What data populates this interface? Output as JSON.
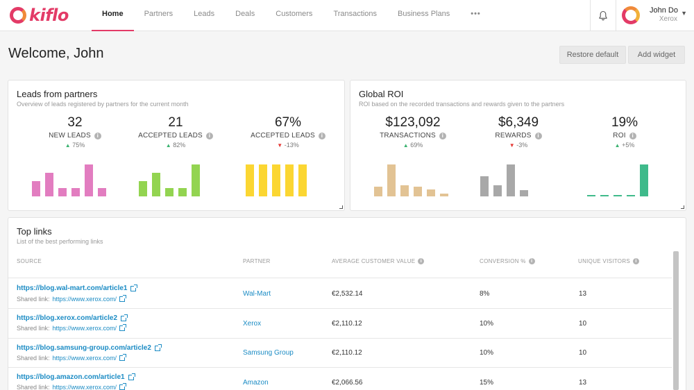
{
  "app": {
    "logo_text": "kiflo"
  },
  "nav": {
    "items": [
      {
        "label": "Home",
        "active": true
      },
      {
        "label": "Partners"
      },
      {
        "label": "Leads"
      },
      {
        "label": "Deals"
      },
      {
        "label": "Customers"
      },
      {
        "label": "Transactions"
      },
      {
        "label": "Business Plans"
      }
    ],
    "more": "•••"
  },
  "user": {
    "name": "John Do",
    "company": "Xerox"
  },
  "header": {
    "welcome": "Welcome, John",
    "restore_label": "Restore default",
    "add_widget_label": "Add widget"
  },
  "leads_card": {
    "title": "Leads from partners",
    "subtitle": "Overview of leads registered by partners for the current month",
    "metrics": [
      {
        "value": "32",
        "label": "NEW LEADS",
        "change": "75%",
        "direction": "up",
        "color": "#e27dc0",
        "bars": [
          0.46,
          0.7,
          0.26,
          0.26,
          0.96,
          0.26
        ]
      },
      {
        "value": "21",
        "label": "ACCEPTED LEADS",
        "change": "82%",
        "direction": "up",
        "color": "#93d451",
        "bars": [
          0.46,
          0.7,
          0.26,
          0.26,
          0.96
        ]
      },
      {
        "value": "67%",
        "label": "ACCEPTED LEADS",
        "change": "-13%",
        "direction": "down",
        "color": "#fbd632",
        "bars": [
          0.96,
          0.96,
          0.96,
          0.96,
          0.96
        ]
      }
    ]
  },
  "roi_card": {
    "title": "Global ROI",
    "subtitle": "ROI based on the recorded transactions and rewards given to the partners",
    "metrics": [
      {
        "value": "$123,092",
        "label": "TRANSACTIONS",
        "change": "69%",
        "direction": "up",
        "color": "#e2c394",
        "bars": [
          0.3,
          0.96,
          0.34,
          0.3,
          0.2,
          0.08
        ]
      },
      {
        "value": "$6,349",
        "label": "REWARDS",
        "change": "-3%",
        "direction": "down",
        "color": "#a8a8a8",
        "bars": [
          0.6,
          0.34,
          0.96,
          0.18
        ]
      },
      {
        "value": "19%",
        "label": "ROI",
        "change": "+5%",
        "direction": "up",
        "color": "#3fba8b",
        "bars": [
          0.02,
          0.04,
          0.02,
          0.04,
          0.96
        ]
      }
    ]
  },
  "top_links": {
    "title": "Top links",
    "subtitle": "List of the best performing links",
    "columns": {
      "source": "SOURCE",
      "partner": "PARTNER",
      "avg_value": "AVERAGE CUSTOMER VALUE",
      "conversion": "CONVERSION %",
      "visitors": "UNIQUE VISITORS"
    },
    "shared_label": "Shared link:",
    "rows": [
      {
        "source": "https://blog.wal-mart.com/article1",
        "shared": "https://www.xerox.com/",
        "partner": "Wal-Mart",
        "avg_value": "€2,532.14",
        "conversion": "8%",
        "visitors": "13"
      },
      {
        "source": "https://blog.xerox.com/article2",
        "shared": "https://www.xerox.com/",
        "partner": "Xerox",
        "avg_value": "€2,110.12",
        "conversion": "10%",
        "visitors": "10"
      },
      {
        "source": "https://blog.samsung-group.com/article2",
        "shared": "https://www.xerox.com/",
        "partner": "Samsung Group",
        "avg_value": "€2,110.12",
        "conversion": "10%",
        "visitors": "10"
      },
      {
        "source": "https://blog.amazon.com/article1",
        "shared": "https://www.xerox.com/",
        "partner": "Amazon",
        "avg_value": "€2,066.56",
        "conversion": "15%",
        "visitors": "13"
      }
    ]
  },
  "colors": {
    "brand": "#e33b67",
    "link": "#1a8bc4"
  }
}
